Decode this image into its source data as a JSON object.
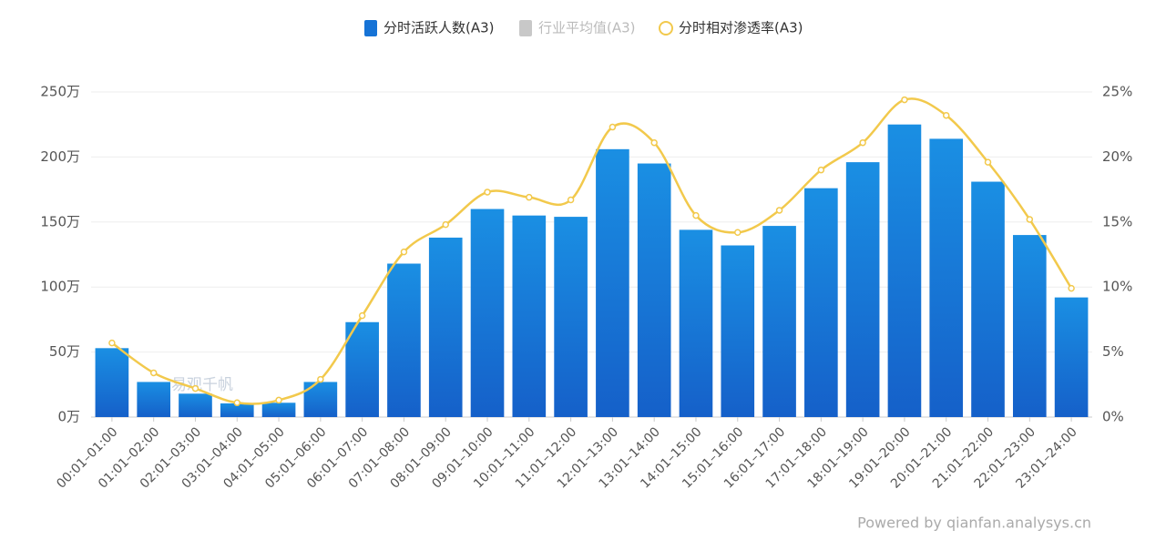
{
  "chart_data": {
    "type": "bar_line",
    "categories": [
      "00:01–01:00",
      "01:01–02:00",
      "02:01–03:00",
      "03:01–04:00",
      "04:01–05:00",
      "05:01–06:00",
      "06:01–07:00",
      "07:01–08:00",
      "08:01–09:00",
      "09:01–10:00",
      "10:01–11:00",
      "11:01–12:00",
      "12:01–13:00",
      "13:01–14:00",
      "14:01–15:00",
      "15:01–16:00",
      "16:01–17:00",
      "17:01–18:00",
      "18:01–19:00",
      "19:01–20:00",
      "20:01–21:00",
      "21:01–22:00",
      "22:01–23:00",
      "23:01–24:00"
    ],
    "series": [
      {
        "name": "分时活跃人数(A3)",
        "color": "#1673d6",
        "type": "bar",
        "values": [
          53,
          27,
          18,
          10.5,
          11,
          27,
          73,
          118,
          138,
          160,
          155,
          154,
          206,
          195,
          144,
          132,
          147,
          176,
          196,
          225,
          214,
          181,
          140,
          92
        ]
      },
      {
        "name": "行业平均值(A3)",
        "color": "#c8c8c8",
        "visible": false
      },
      {
        "name": "分时相对渗透率(A3)",
        "color": "#f2c94c",
        "type": "line",
        "axis": "y2",
        "values": [
          5.7,
          3.4,
          2.2,
          1.1,
          1.3,
          2.9,
          7.8,
          12.7,
          14.8,
          17.3,
          16.9,
          16.7,
          22.3,
          21.1,
          15.5,
          14.2,
          15.9,
          19.0,
          21.1,
          24.4,
          23.2,
          19.6,
          15.2,
          9.9
        ]
      }
    ],
    "ylim": [
      0,
      250
    ],
    "yticks": [
      {
        "value": 0,
        "label": "0万"
      },
      {
        "value": 50,
        "label": "50万"
      },
      {
        "value": 100,
        "label": "100万"
      },
      {
        "value": 150,
        "label": "150万"
      },
      {
        "value": 200,
        "label": "200万"
      },
      {
        "value": 250,
        "label": "250万"
      }
    ],
    "y2lim": [
      0,
      25
    ],
    "y2ticks": [
      {
        "value": 0,
        "label": "0%"
      },
      {
        "value": 5,
        "label": "5%"
      },
      {
        "value": 10,
        "label": "10%"
      },
      {
        "value": 15,
        "label": "15%"
      },
      {
        "value": 20,
        "label": "20%"
      },
      {
        "value": 25,
        "label": "25%"
      }
    ],
    "grid": true,
    "legend": "top",
    "watermark": "易观千帆",
    "footer": "Powered by qianfan.analysys.cn"
  }
}
